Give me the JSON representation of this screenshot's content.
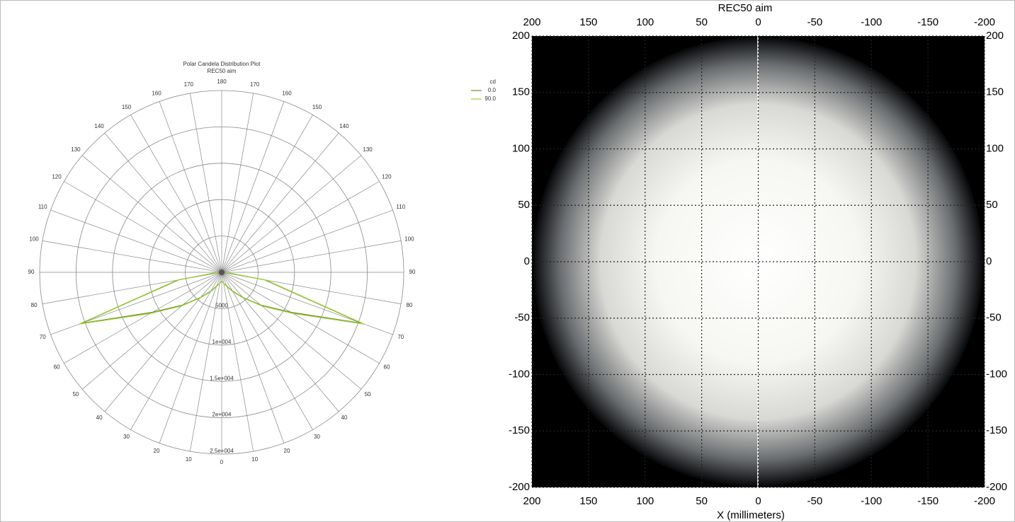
{
  "chart_data": [
    {
      "type": "polar",
      "title": "Polar Candela Distribution Plot",
      "subtitle": "REC50 aim",
      "legend_title": "cd",
      "x": [
        0,
        10,
        20,
        30,
        40,
        50,
        60,
        70,
        80,
        90
      ],
      "series": [
        {
          "name": "0.0",
          "color": "#6b8e23",
          "values": [
            1200,
            1500,
            2000,
            3000,
            4500,
            7000,
            11000,
            20500,
            6000,
            500
          ]
        },
        {
          "name": "90.0",
          "color": "#9acd32",
          "values": [
            1200,
            1500,
            2100,
            3100,
            4600,
            7200,
            11300,
            20800,
            6200,
            500
          ]
        }
      ],
      "rlim": [
        0,
        25000
      ],
      "rticks": [
        5000,
        {
          "value": 10000,
          "label": "1e+004"
        },
        {
          "value": 15000,
          "label": "1.5e+004"
        },
        {
          "value": 20000,
          "label": "2e+004"
        },
        {
          "value": 25000,
          "label": "2.5e+004"
        }
      ],
      "angle_ticks": [
        0,
        10,
        20,
        30,
        40,
        50,
        60,
        70,
        80,
        90,
        100,
        110,
        120,
        130,
        140,
        150,
        160,
        170,
        180
      ]
    },
    {
      "type": "heatmap",
      "title": "REC50 aim",
      "xlabel": "X (millimeters)",
      "xlim": [
        200,
        -200
      ],
      "xticks": [
        200,
        150,
        100,
        50,
        0,
        -50,
        -100,
        -150,
        -200
      ],
      "ylim": [
        -200,
        200
      ],
      "yticks": [
        200,
        150,
        100,
        50,
        0,
        -50,
        -100,
        -150,
        -200
      ],
      "grid": true
    }
  ]
}
